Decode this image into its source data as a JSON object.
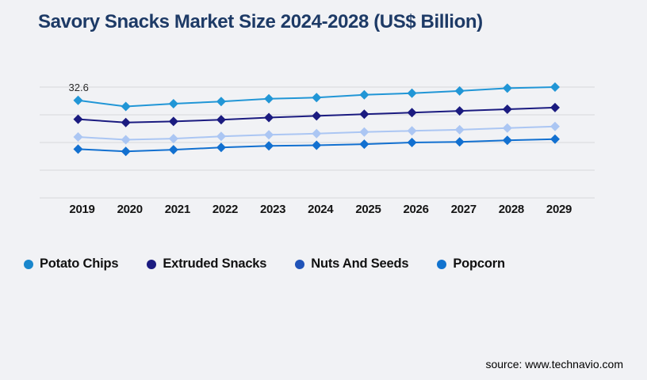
{
  "header": {
    "title": "Savory Snacks Market Size 2024-2028 (US$ Billion)"
  },
  "footer": {
    "source": "source: www.technavio.com"
  },
  "colors": {
    "background": "#f1f2f5",
    "title": "#1d3a66",
    "gridline": "#d7d8db",
    "axis_text": "#141414",
    "legend_text": "#111111"
  },
  "chart_data": {
    "type": "line",
    "title": "Savory Snacks Market Size 2024-2028 (US$ Billion)",
    "unit": "US$ Billion",
    "x": [
      "2019",
      "2020",
      "2021",
      "2022",
      "2023",
      "2024",
      "2025",
      "2026",
      "2027",
      "2028",
      "2029"
    ],
    "xlabel": "",
    "ylabel": "",
    "ylim": [
      15,
      35
    ],
    "gridline_step": 5,
    "y_axis_labels_visible": false,
    "grid": "horizontal",
    "legend_position": "bottom-left",
    "marker_shape_plot": "diamond",
    "marker_shape_legend": "circle",
    "annotations": [
      {
        "series": "Potato Chips",
        "x": "2019",
        "text": "32.6"
      }
    ],
    "values_note": "Only the 32.6 data label is printed on the chart; y-axis is unlabeled, all other values estimated from gridlines.",
    "series": [
      {
        "name": "Potato Chips",
        "legend_color": "#1a87cc",
        "line_color": "#2196d6",
        "values": [
          32.6,
          31.5,
          32.0,
          32.4,
          32.9,
          33.1,
          33.6,
          33.9,
          34.3,
          34.8,
          35.0
        ]
      },
      {
        "name": "Extruded Snacks",
        "legend_color": "#1b1b80",
        "line_color": "#1b1b80",
        "values": [
          29.2,
          28.6,
          28.8,
          29.1,
          29.5,
          29.8,
          30.1,
          30.4,
          30.7,
          31.0,
          31.3
        ]
      },
      {
        "name": "Nuts And Seeds",
        "legend_color": "#2053b8",
        "line_color": "#abc6f3",
        "values": [
          26.0,
          25.5,
          25.7,
          26.1,
          26.4,
          26.6,
          26.9,
          27.1,
          27.3,
          27.6,
          27.9
        ]
      },
      {
        "name": "Popcorn",
        "legend_color": "#1173cf",
        "line_color": "#1270d0",
        "values": [
          23.8,
          23.4,
          23.7,
          24.1,
          24.4,
          24.5,
          24.7,
          25.0,
          25.1,
          25.4,
          25.6
        ]
      }
    ]
  }
}
